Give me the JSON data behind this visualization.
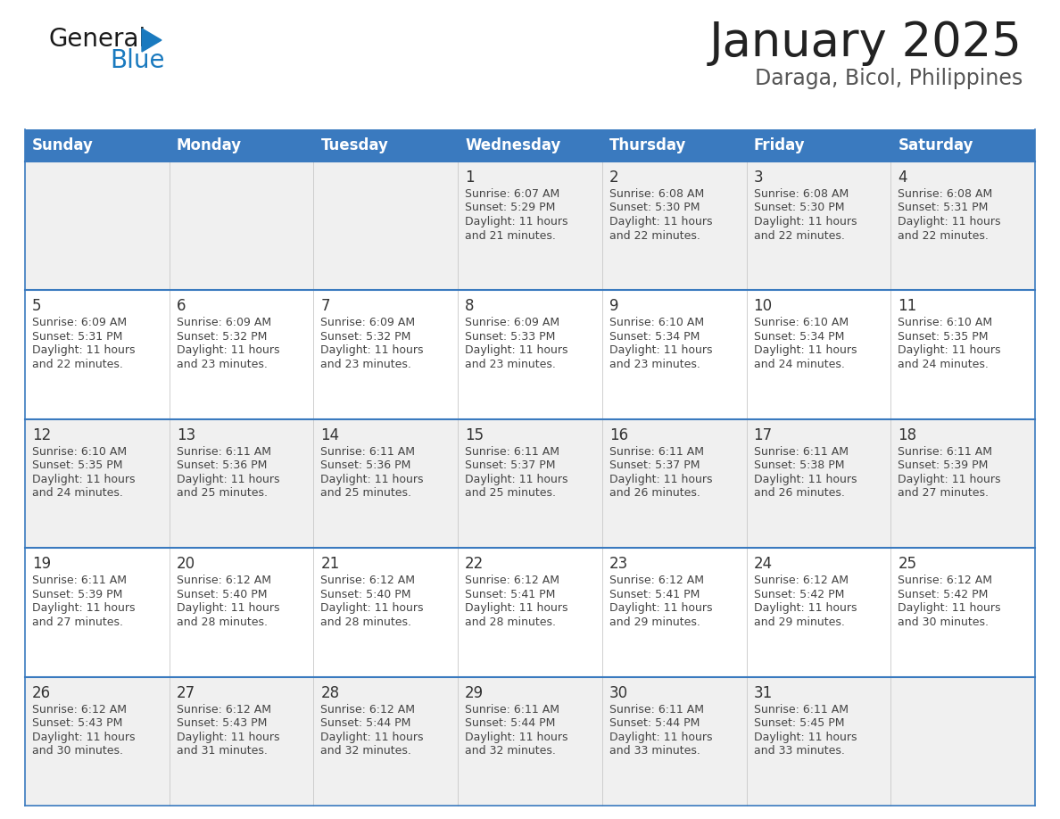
{
  "title": "January 2025",
  "subtitle": "Daraga, Bicol, Philippines",
  "header_bg": "#3a7abf",
  "header_text_color": "#ffffff",
  "day_names": [
    "Sunday",
    "Monday",
    "Tuesday",
    "Wednesday",
    "Thursday",
    "Friday",
    "Saturday"
  ],
  "row_bg_even": "#f0f0f0",
  "row_bg_odd": "#ffffff",
  "cell_border_color": "#3a7abf",
  "date_color": "#333333",
  "info_color": "#444444",
  "title_color": "#222222",
  "subtitle_color": "#555555",
  "logo_general_color": "#1a1a1a",
  "logo_blue_color": "#1a7abf",
  "weeks": [
    [
      {
        "day": null
      },
      {
        "day": null
      },
      {
        "day": null
      },
      {
        "day": 1,
        "sunrise": "6:07 AM",
        "sunset": "5:29 PM",
        "daylight_hours": "11 hours",
        "daylight_mins": "21 minutes."
      },
      {
        "day": 2,
        "sunrise": "6:08 AM",
        "sunset": "5:30 PM",
        "daylight_hours": "11 hours",
        "daylight_mins": "22 minutes."
      },
      {
        "day": 3,
        "sunrise": "6:08 AM",
        "sunset": "5:30 PM",
        "daylight_hours": "11 hours",
        "daylight_mins": "22 minutes."
      },
      {
        "day": 4,
        "sunrise": "6:08 AM",
        "sunset": "5:31 PM",
        "daylight_hours": "11 hours",
        "daylight_mins": "22 minutes."
      }
    ],
    [
      {
        "day": 5,
        "sunrise": "6:09 AM",
        "sunset": "5:31 PM",
        "daylight_hours": "11 hours",
        "daylight_mins": "22 minutes."
      },
      {
        "day": 6,
        "sunrise": "6:09 AM",
        "sunset": "5:32 PM",
        "daylight_hours": "11 hours",
        "daylight_mins": "23 minutes."
      },
      {
        "day": 7,
        "sunrise": "6:09 AM",
        "sunset": "5:32 PM",
        "daylight_hours": "11 hours",
        "daylight_mins": "23 minutes."
      },
      {
        "day": 8,
        "sunrise": "6:09 AM",
        "sunset": "5:33 PM",
        "daylight_hours": "11 hours",
        "daylight_mins": "23 minutes."
      },
      {
        "day": 9,
        "sunrise": "6:10 AM",
        "sunset": "5:34 PM",
        "daylight_hours": "11 hours",
        "daylight_mins": "23 minutes."
      },
      {
        "day": 10,
        "sunrise": "6:10 AM",
        "sunset": "5:34 PM",
        "daylight_hours": "11 hours",
        "daylight_mins": "24 minutes."
      },
      {
        "day": 11,
        "sunrise": "6:10 AM",
        "sunset": "5:35 PM",
        "daylight_hours": "11 hours",
        "daylight_mins": "24 minutes."
      }
    ],
    [
      {
        "day": 12,
        "sunrise": "6:10 AM",
        "sunset": "5:35 PM",
        "daylight_hours": "11 hours",
        "daylight_mins": "24 minutes."
      },
      {
        "day": 13,
        "sunrise": "6:11 AM",
        "sunset": "5:36 PM",
        "daylight_hours": "11 hours",
        "daylight_mins": "25 minutes."
      },
      {
        "day": 14,
        "sunrise": "6:11 AM",
        "sunset": "5:36 PM",
        "daylight_hours": "11 hours",
        "daylight_mins": "25 minutes."
      },
      {
        "day": 15,
        "sunrise": "6:11 AM",
        "sunset": "5:37 PM",
        "daylight_hours": "11 hours",
        "daylight_mins": "25 minutes."
      },
      {
        "day": 16,
        "sunrise": "6:11 AM",
        "sunset": "5:37 PM",
        "daylight_hours": "11 hours",
        "daylight_mins": "26 minutes."
      },
      {
        "day": 17,
        "sunrise": "6:11 AM",
        "sunset": "5:38 PM",
        "daylight_hours": "11 hours",
        "daylight_mins": "26 minutes."
      },
      {
        "day": 18,
        "sunrise": "6:11 AM",
        "sunset": "5:39 PM",
        "daylight_hours": "11 hours",
        "daylight_mins": "27 minutes."
      }
    ],
    [
      {
        "day": 19,
        "sunrise": "6:11 AM",
        "sunset": "5:39 PM",
        "daylight_hours": "11 hours",
        "daylight_mins": "27 minutes."
      },
      {
        "day": 20,
        "sunrise": "6:12 AM",
        "sunset": "5:40 PM",
        "daylight_hours": "11 hours",
        "daylight_mins": "28 minutes."
      },
      {
        "day": 21,
        "sunrise": "6:12 AM",
        "sunset": "5:40 PM",
        "daylight_hours": "11 hours",
        "daylight_mins": "28 minutes."
      },
      {
        "day": 22,
        "sunrise": "6:12 AM",
        "sunset": "5:41 PM",
        "daylight_hours": "11 hours",
        "daylight_mins": "28 minutes."
      },
      {
        "day": 23,
        "sunrise": "6:12 AM",
        "sunset": "5:41 PM",
        "daylight_hours": "11 hours",
        "daylight_mins": "29 minutes."
      },
      {
        "day": 24,
        "sunrise": "6:12 AM",
        "sunset": "5:42 PM",
        "daylight_hours": "11 hours",
        "daylight_mins": "29 minutes."
      },
      {
        "day": 25,
        "sunrise": "6:12 AM",
        "sunset": "5:42 PM",
        "daylight_hours": "11 hours",
        "daylight_mins": "30 minutes."
      }
    ],
    [
      {
        "day": 26,
        "sunrise": "6:12 AM",
        "sunset": "5:43 PM",
        "daylight_hours": "11 hours",
        "daylight_mins": "30 minutes."
      },
      {
        "day": 27,
        "sunrise": "6:12 AM",
        "sunset": "5:43 PM",
        "daylight_hours": "11 hours",
        "daylight_mins": "31 minutes."
      },
      {
        "day": 28,
        "sunrise": "6:12 AM",
        "sunset": "5:44 PM",
        "daylight_hours": "11 hours",
        "daylight_mins": "32 minutes."
      },
      {
        "day": 29,
        "sunrise": "6:11 AM",
        "sunset": "5:44 PM",
        "daylight_hours": "11 hours",
        "daylight_mins": "32 minutes."
      },
      {
        "day": 30,
        "sunrise": "6:11 AM",
        "sunset": "5:44 PM",
        "daylight_hours": "11 hours",
        "daylight_mins": "33 minutes."
      },
      {
        "day": 31,
        "sunrise": "6:11 AM",
        "sunset": "5:45 PM",
        "daylight_hours": "11 hours",
        "daylight_mins": "33 minutes."
      },
      {
        "day": null
      }
    ]
  ],
  "fig_width": 11.88,
  "fig_height": 9.18,
  "dpi": 100
}
